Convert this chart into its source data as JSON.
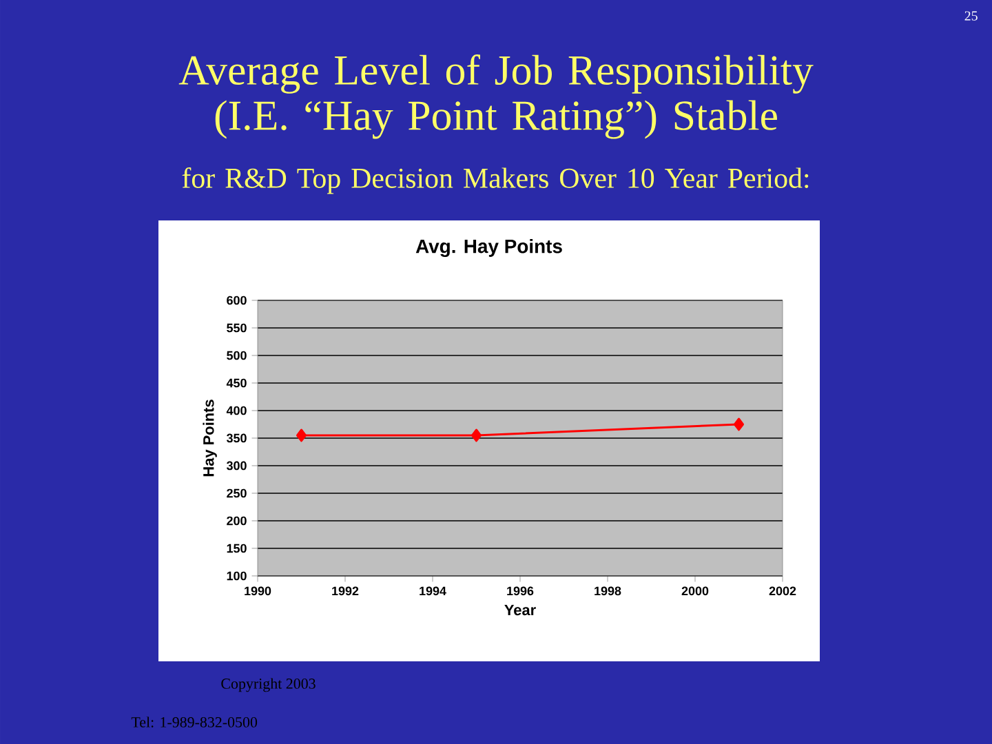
{
  "chart_data": {
    "type": "line",
    "title": "Average Level of Job Responsibility (I.E. “Hay Point Rating”) Stable",
    "subtitle": "for R&D Top Decision Makers Over 10 Year Period:",
    "xlabel": "Year",
    "ylabel": "Hay Points",
    "x": [
      1991,
      1995,
      2001
    ],
    "series": [
      {
        "color": "#ff0000",
        "values": [
          355,
          355,
          375
        ]
      }
    ],
    "xlim": [
      1990,
      2002
    ],
    "xticks": [
      1990,
      1992,
      1994,
      1996,
      1998,
      2000,
      2002
    ],
    "ylim": [
      100,
      600
    ],
    "yticks": [
      100,
      150,
      200,
      250,
      300,
      350,
      400,
      450,
      500,
      550,
      600
    ],
    "grid": "y",
    "marker": "diamond",
    "line_style": "solid",
    "annotations": [
      "Avg. Hay Points",
      "25",
      "Copyright 2003",
      "Tel:  1-989-832-0500"
    ]
  }
}
